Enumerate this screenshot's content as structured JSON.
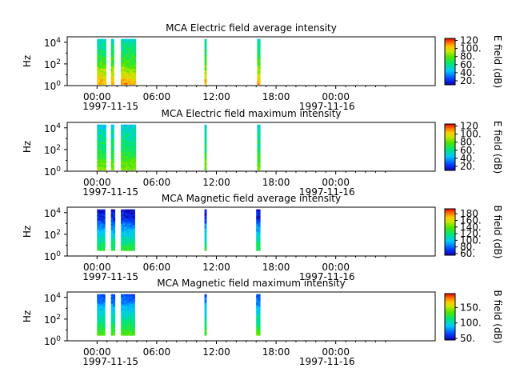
{
  "chart_data": [
    {
      "type": "heatmap",
      "title": "MCA  Electric field average intensity",
      "ylabel": "Hz",
      "yscale": "log",
      "yticks": [
        {
          "exp": "0"
        },
        {
          "exp": "2"
        },
        {
          "exp": "4"
        }
      ],
      "ylim_log10": [
        0,
        4.5
      ],
      "xlim_hours": [
        -3,
        34
      ],
      "xticks": [
        "00:00",
        "06:00",
        "12:00",
        "18:00",
        "00:00"
      ],
      "xdates": [
        "1997-11-15",
        "1997-11-16"
      ],
      "colorbar": {
        "label": "E field (dB)",
        "ticks": [
          "20.",
          "40.",
          "60.",
          "80.",
          "100.",
          "120"
        ],
        "range": [
          10,
          125
        ]
      },
      "colormap": "rainbow",
      "data_intervals_hours": [
        [
          0.0,
          0.9
        ],
        [
          1.4,
          1.7
        ],
        [
          2.4,
          3.9
        ],
        [
          10.8,
          11.0
        ],
        [
          16.1,
          16.4
        ]
      ],
      "profile_dB_by_log10_hz": [
        [
          0,
          110
        ],
        [
          1,
          95
        ],
        [
          2,
          75
        ],
        [
          3,
          65
        ],
        [
          4,
          55
        ],
        [
          4.5,
          50
        ]
      ]
    },
    {
      "type": "heatmap",
      "title": "MCA  Electric field maximum intensity",
      "ylabel": "Hz",
      "yscale": "log",
      "yticks": [
        {
          "exp": "0"
        },
        {
          "exp": "2"
        },
        {
          "exp": "4"
        }
      ],
      "ylim_log10": [
        0,
        4.5
      ],
      "xlim_hours": [
        -3,
        34
      ],
      "xticks": [
        "00:00",
        "06:00",
        "12:00",
        "18:00",
        "00:00"
      ],
      "xdates": [
        "1997-11-15",
        "1997-11-16"
      ],
      "colorbar": {
        "label": "E field (dB)",
        "ticks": [
          "20.",
          "40.",
          "60.",
          "80.",
          "100.",
          "120"
        ],
        "range": [
          10,
          125
        ]
      },
      "colormap": "rainbow",
      "data_intervals_hours": [
        [
          0.0,
          0.9
        ],
        [
          1.4,
          1.7
        ],
        [
          2.4,
          3.9
        ],
        [
          10.8,
          11.0
        ],
        [
          16.1,
          16.4
        ]
      ],
      "profile_dB_by_log10_hz": [
        [
          0,
          85
        ],
        [
          1,
          75
        ],
        [
          2,
          65
        ],
        [
          3,
          58
        ],
        [
          4,
          50
        ],
        [
          4.5,
          45
        ]
      ]
    },
    {
      "type": "heatmap",
      "title": "MCA  Magnetic field average intensity",
      "ylabel": "Hz",
      "yscale": "log",
      "yticks": [
        {
          "exp": "0"
        },
        {
          "exp": "2"
        },
        {
          "exp": "4"
        }
      ],
      "ylim_log10": [
        0,
        4.5
      ],
      "xlim_hours": [
        -3,
        34
      ],
      "xticks": [
        "00:00",
        "06:00",
        "12:00",
        "18:00",
        "00:00"
      ],
      "xdates": [
        "1997-11-15",
        "1997-11-16"
      ],
      "colorbar": {
        "label": "B field (dB)",
        "ticks": [
          "60.",
          "80.",
          "100.",
          "120.",
          "140.",
          "160.",
          "180"
        ],
        "range": [
          55,
          195
        ]
      },
      "colormap": "rainbow",
      "data_intervals_hours": [
        [
          0.0,
          0.8
        ],
        [
          1.4,
          1.8
        ],
        [
          2.4,
          3.8
        ],
        [
          10.8,
          11.0
        ],
        [
          16.0,
          16.4
        ]
      ],
      "profile_dB_by_log10_hz": [
        [
          0.5,
          130
        ],
        [
          1,
          120
        ],
        [
          1.5,
          110
        ],
        [
          2,
          100
        ],
        [
          3,
          80
        ],
        [
          3.5,
          65
        ],
        [
          4.3,
          60
        ]
      ]
    },
    {
      "type": "heatmap",
      "title": "MCA  Magnetic field maximum intensity",
      "ylabel": "Hz",
      "yscale": "log",
      "yticks": [
        {
          "exp": "0"
        },
        {
          "exp": "2"
        },
        {
          "exp": "4"
        }
      ],
      "ylim_log10": [
        0,
        4.5
      ],
      "xlim_hours": [
        -3,
        34
      ],
      "xticks": [
        "00:00",
        "06:00",
        "12:00",
        "18:00",
        "00:00"
      ],
      "xdates": [
        "1997-11-15",
        "1997-11-16"
      ],
      "colorbar": {
        "label": "B field (dB)",
        "ticks": [
          "50.",
          "100.",
          "150."
        ],
        "range": [
          45,
          195
        ]
      },
      "colormap": "rainbow",
      "data_intervals_hours": [
        [
          0.0,
          0.8
        ],
        [
          1.4,
          1.8
        ],
        [
          2.4,
          3.8
        ],
        [
          10.8,
          11.0
        ],
        [
          16.0,
          16.4
        ]
      ],
      "profile_dB_by_log10_hz": [
        [
          0.5,
          135
        ],
        [
          1,
          125
        ],
        [
          1.5,
          115
        ],
        [
          2,
          105
        ],
        [
          3,
          90
        ],
        [
          3.5,
          75
        ],
        [
          4.3,
          65
        ]
      ]
    }
  ]
}
